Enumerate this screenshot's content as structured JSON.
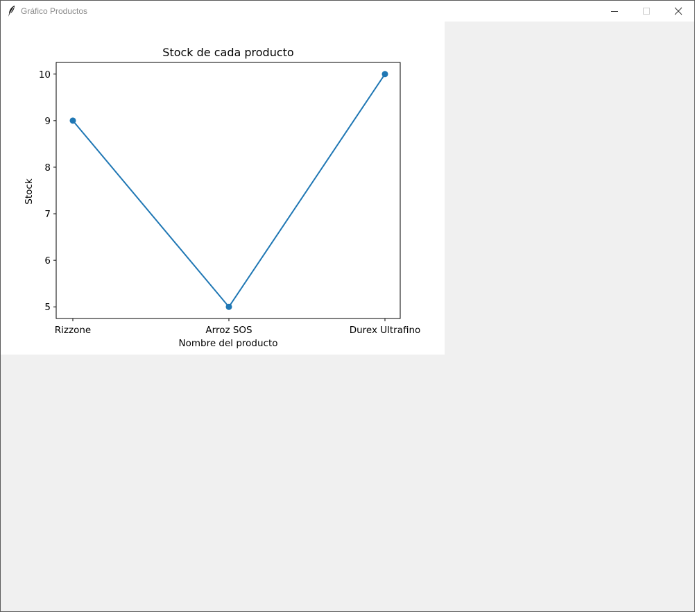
{
  "window": {
    "title": "Gráfico Productos",
    "controls": [
      "minimize",
      "maximize",
      "close"
    ]
  },
  "chart_data": {
    "type": "line",
    "title": "Stock de cada producto",
    "xlabel": "Nombre del producto",
    "ylabel": "Stock",
    "categories": [
      "Rizzone",
      "Arroz SOS",
      "Durex Ultrafino"
    ],
    "values": [
      9,
      5,
      10
    ],
    "ylim": [
      4.75,
      10.25
    ],
    "yticks": [
      5,
      6,
      7,
      8,
      9,
      10
    ],
    "markers": true,
    "grid": false,
    "color": "#1f77b4"
  }
}
